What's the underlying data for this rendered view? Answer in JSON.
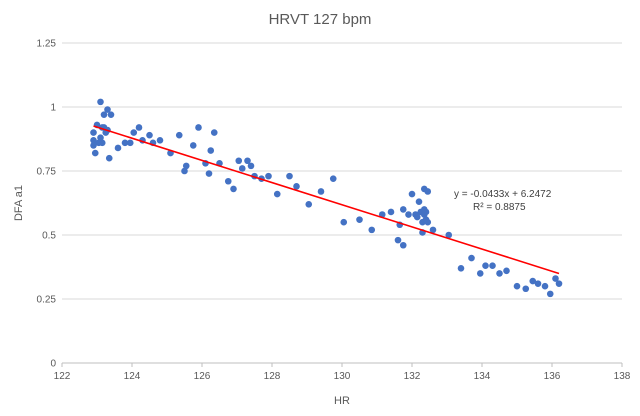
{
  "chart_data": {
    "type": "scatter",
    "title": "HRVT 127 bpm",
    "xlabel": "HR",
    "ylabel": "DFA a1",
    "xlim": [
      122,
      138
    ],
    "ylim": [
      0,
      1.25
    ],
    "x_ticks": [
      122,
      124,
      126,
      128,
      130,
      132,
      134,
      136,
      138
    ],
    "x_tick_labels": [
      "122",
      "124",
      "126",
      "128",
      "130",
      "132",
      "134",
      "136",
      "138"
    ],
    "y_ticks": [
      0,
      0.25,
      0.5,
      0.75,
      1,
      1.25
    ],
    "y_tick_labels": [
      "0",
      "0.25",
      "0.5",
      "0.75",
      "1",
      "1.25"
    ],
    "grid": "horizontal",
    "legend": "none",
    "marker_color": "#4472C4",
    "trendline_color": "#FF0000",
    "gridline_color": "#D9D9D9",
    "trendline": {
      "equation": "y = -0.0433x + 6.2472",
      "r_squared": "R² = 0.8875",
      "slope": -0.0433,
      "intercept": 6.2472,
      "x_range": [
        122.9,
        136.2
      ]
    },
    "points": [
      [
        122.9,
        0.87
      ],
      [
        122.9,
        0.85
      ],
      [
        122.9,
        0.9
      ],
      [
        122.95,
        0.82
      ],
      [
        123.0,
        0.93
      ],
      [
        123.05,
        0.86
      ],
      [
        123.1,
        1.02
      ],
      [
        123.1,
        0.88
      ],
      [
        123.15,
        0.86
      ],
      [
        123.15,
        0.92
      ],
      [
        123.2,
        0.92
      ],
      [
        123.2,
        0.97
      ],
      [
        123.25,
        0.9
      ],
      [
        123.3,
        0.99
      ],
      [
        123.3,
        0.91
      ],
      [
        123.35,
        0.8
      ],
      [
        123.4,
        0.97
      ],
      [
        123.6,
        0.84
      ],
      [
        123.8,
        0.86
      ],
      [
        123.95,
        0.86
      ],
      [
        124.05,
        0.9
      ],
      [
        124.2,
        0.92
      ],
      [
        124.3,
        0.87
      ],
      [
        124.5,
        0.89
      ],
      [
        124.6,
        0.86
      ],
      [
        124.8,
        0.87
      ],
      [
        125.1,
        0.82
      ],
      [
        125.35,
        0.89
      ],
      [
        125.5,
        0.75
      ],
      [
        125.55,
        0.77
      ],
      [
        125.75,
        0.85
      ],
      [
        125.9,
        0.92
      ],
      [
        126.1,
        0.78
      ],
      [
        126.2,
        0.74
      ],
      [
        126.25,
        0.83
      ],
      [
        126.35,
        0.9
      ],
      [
        126.5,
        0.78
      ],
      [
        126.75,
        0.71
      ],
      [
        126.9,
        0.68
      ],
      [
        127.05,
        0.79
      ],
      [
        127.15,
        0.76
      ],
      [
        127.3,
        0.79
      ],
      [
        127.4,
        0.77
      ],
      [
        127.5,
        0.73
      ],
      [
        127.7,
        0.72
      ],
      [
        127.9,
        0.73
      ],
      [
        128.15,
        0.66
      ],
      [
        128.5,
        0.73
      ],
      [
        128.7,
        0.69
      ],
      [
        129.05,
        0.62
      ],
      [
        129.4,
        0.67
      ],
      [
        129.75,
        0.72
      ],
      [
        130.05,
        0.55
      ],
      [
        130.5,
        0.56
      ],
      [
        130.85,
        0.52
      ],
      [
        131.15,
        0.58
      ],
      [
        131.4,
        0.59
      ],
      [
        131.6,
        0.48
      ],
      [
        131.65,
        0.54
      ],
      [
        131.75,
        0.6
      ],
      [
        131.75,
        0.46
      ],
      [
        131.9,
        0.58
      ],
      [
        132.0,
        0.66
      ],
      [
        132.1,
        0.58
      ],
      [
        132.15,
        0.57
      ],
      [
        132.2,
        0.63
      ],
      [
        132.25,
        0.59
      ],
      [
        132.3,
        0.51
      ],
      [
        132.3,
        0.55
      ],
      [
        132.35,
        0.68
      ],
      [
        132.35,
        0.6
      ],
      [
        132.35,
        0.58
      ],
      [
        132.4,
        0.56
      ],
      [
        132.4,
        0.59
      ],
      [
        132.45,
        0.67
      ],
      [
        132.45,
        0.55
      ],
      [
        132.6,
        0.52
      ],
      [
        133.05,
        0.5
      ],
      [
        133.4,
        0.37
      ],
      [
        133.7,
        0.41
      ],
      [
        133.95,
        0.35
      ],
      [
        134.1,
        0.38
      ],
      [
        134.3,
        0.38
      ],
      [
        134.5,
        0.35
      ],
      [
        134.7,
        0.36
      ],
      [
        135.0,
        0.3
      ],
      [
        135.25,
        0.29
      ],
      [
        135.45,
        0.32
      ],
      [
        135.6,
        0.31
      ],
      [
        135.8,
        0.3
      ],
      [
        135.95,
        0.27
      ],
      [
        136.1,
        0.33
      ],
      [
        136.2,
        0.31
      ]
    ]
  }
}
